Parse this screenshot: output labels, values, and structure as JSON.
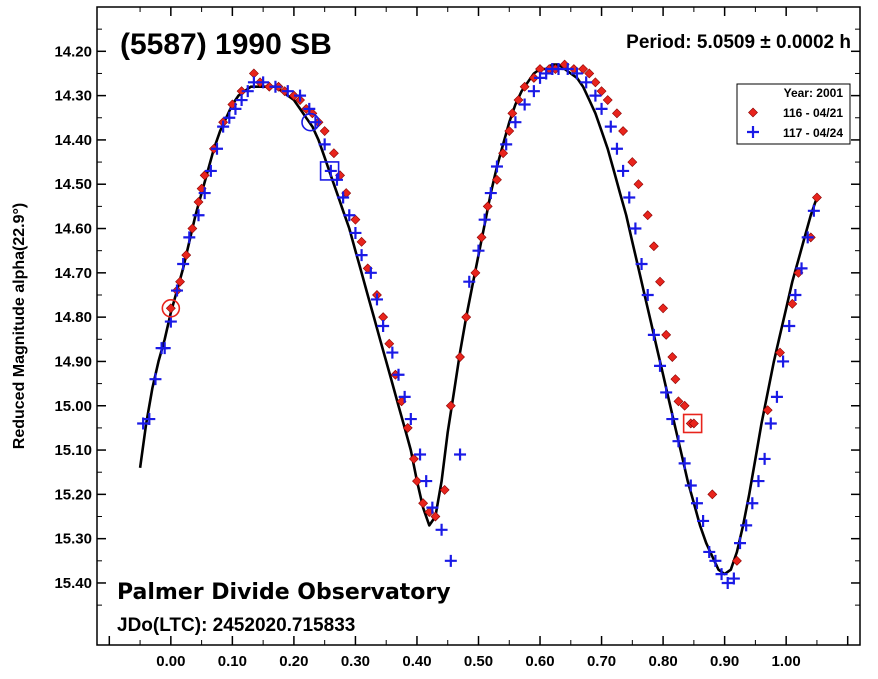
{
  "chart_data": {
    "type": "scatter",
    "title": "(5587) 1990 SB",
    "period_label": "Period: 5.0509 ± 0.0002 h",
    "ylabel": "Reduced Magnitude alpha(22.9°)",
    "xlabel": "",
    "footer": {
      "observatory": "Palmer Divide Observatory",
      "jdo": "JDo(LTC): 2452020.715833"
    },
    "xlim": [
      -0.12,
      1.12
    ],
    "ylim": [
      14.1,
      15.54
    ],
    "y_inverted": true,
    "x_ticks": [
      0.0,
      0.1,
      0.2,
      0.3,
      0.4,
      0.5,
      0.6,
      0.7,
      0.8,
      0.9,
      1.0
    ],
    "x_tick_labels": [
      "0.00",
      "0.10",
      "0.20",
      "0.30",
      "0.40",
      "0.50",
      "0.60",
      "0.70",
      "0.80",
      "0.90",
      "1.00"
    ],
    "y_ticks": [
      14.2,
      14.3,
      14.4,
      14.5,
      14.6,
      14.7,
      14.8,
      14.9,
      15.0,
      15.1,
      15.2,
      15.3,
      15.4
    ],
    "y_tick_labels": [
      "14.20",
      "14.30",
      "14.40",
      "14.50",
      "14.60",
      "14.70",
      "14.80",
      "14.90",
      "15.00",
      "15.10",
      "15.20",
      "15.30",
      "15.40"
    ],
    "grid": false,
    "legend": {
      "placement": "top-right",
      "title": "Year: 2001",
      "entries": [
        "116 - 04/21",
        "117 - 04/24"
      ]
    },
    "series": [
      {
        "name": "116 - 04/21",
        "marker": "diamond",
        "color": "#e8241c",
        "x": [
          0.0,
          0.01,
          0.015,
          0.025,
          0.035,
          0.045,
          0.05,
          0.055,
          0.07,
          0.085,
          0.1,
          0.115,
          0.135,
          0.145,
          0.16,
          0.175,
          0.185,
          0.2,
          0.21,
          0.22,
          0.23,
          0.24,
          0.25,
          0.265,
          0.275,
          0.285,
          0.3,
          0.31,
          0.32,
          0.335,
          0.345,
          0.355,
          0.365,
          0.375,
          0.385,
          0.395,
          0.4,
          0.41,
          0.42,
          0.43,
          0.445,
          0.455,
          0.47,
          0.48,
          0.495,
          0.505,
          0.515,
          0.53,
          0.54,
          0.55,
          0.555,
          0.565,
          0.575,
          0.59,
          0.6,
          0.615,
          0.625,
          0.64,
          0.655,
          0.67,
          0.68,
          0.69,
          0.7,
          0.71,
          0.725,
          0.735,
          0.75,
          0.76,
          0.775,
          0.785,
          0.795,
          0.8,
          0.805,
          0.815,
          0.82,
          0.825,
          0.835,
          0.845,
          0.85,
          0.88,
          0.92,
          0.97,
          0.99,
          1.01,
          1.02,
          1.04,
          1.05
        ],
        "y": [
          14.78,
          14.74,
          14.72,
          14.66,
          14.6,
          14.54,
          14.51,
          14.48,
          14.42,
          14.36,
          14.32,
          14.29,
          14.25,
          14.27,
          14.28,
          14.28,
          14.29,
          14.3,
          14.31,
          14.33,
          14.34,
          14.36,
          14.38,
          14.43,
          14.48,
          14.52,
          14.58,
          14.63,
          14.69,
          14.75,
          14.8,
          14.86,
          14.93,
          14.99,
          15.05,
          15.12,
          15.17,
          15.22,
          15.24,
          15.25,
          15.19,
          15.0,
          14.89,
          14.8,
          14.7,
          14.62,
          14.55,
          14.49,
          14.43,
          14.38,
          14.34,
          14.31,
          14.28,
          14.26,
          14.24,
          14.24,
          14.24,
          14.23,
          14.24,
          14.24,
          14.25,
          14.27,
          14.29,
          14.31,
          14.34,
          14.38,
          14.45,
          14.5,
          14.57,
          14.64,
          14.72,
          14.78,
          14.84,
          14.89,
          14.94,
          14.99,
          15.0,
          15.04,
          15.04,
          15.2,
          15.35,
          15.01,
          14.88,
          14.77,
          14.7,
          14.62,
          14.53
        ]
      },
      {
        "name": "117 - 04/24",
        "marker": "plus",
        "color": "#1a1ae6",
        "x": [
          -0.045,
          -0.035,
          -0.025,
          -0.015,
          -0.01,
          0.0,
          0.01,
          0.02,
          0.03,
          0.045,
          0.055,
          0.065,
          0.075,
          0.085,
          0.095,
          0.105,
          0.115,
          0.125,
          0.135,
          0.15,
          0.17,
          0.19,
          0.21,
          0.225,
          0.235,
          0.25,
          0.26,
          0.27,
          0.28,
          0.29,
          0.3,
          0.31,
          0.325,
          0.335,
          0.345,
          0.36,
          0.37,
          0.38,
          0.39,
          0.405,
          0.415,
          0.425,
          0.44,
          0.455,
          0.47,
          0.485,
          0.5,
          0.51,
          0.52,
          0.53,
          0.545,
          0.56,
          0.575,
          0.59,
          0.6,
          0.61,
          0.62,
          0.63,
          0.645,
          0.66,
          0.675,
          0.69,
          0.7,
          0.715,
          0.725,
          0.735,
          0.745,
          0.755,
          0.765,
          0.775,
          0.785,
          0.795,
          0.805,
          0.815,
          0.825,
          0.835,
          0.845,
          0.855,
          0.865,
          0.875,
          0.885,
          0.895,
          0.905,
          0.915,
          0.925,
          0.935,
          0.945,
          0.955,
          0.965,
          0.975,
          0.985,
          0.995,
          1.005,
          1.015,
          1.025,
          1.035,
          1.045
        ],
        "y": [
          15.04,
          15.03,
          14.94,
          14.87,
          14.87,
          14.81,
          14.74,
          14.68,
          14.62,
          14.57,
          14.52,
          14.47,
          14.42,
          14.37,
          14.35,
          14.33,
          14.31,
          14.29,
          14.27,
          14.27,
          14.28,
          14.29,
          14.3,
          14.33,
          14.36,
          14.41,
          14.47,
          14.49,
          14.53,
          14.57,
          14.61,
          14.66,
          14.7,
          14.76,
          14.82,
          14.88,
          14.93,
          14.98,
          15.03,
          15.11,
          15.17,
          15.23,
          15.28,
          15.35,
          15.11,
          14.72,
          14.65,
          14.58,
          14.52,
          14.46,
          14.41,
          14.36,
          14.32,
          14.29,
          14.26,
          14.25,
          14.24,
          14.24,
          14.24,
          14.25,
          14.27,
          14.3,
          14.33,
          14.37,
          14.42,
          14.47,
          14.53,
          14.6,
          14.68,
          14.75,
          14.84,
          14.91,
          14.97,
          15.03,
          15.08,
          15.13,
          15.18,
          15.22,
          15.26,
          15.33,
          15.35,
          15.38,
          15.4,
          15.39,
          15.31,
          15.27,
          15.22,
          15.17,
          15.12,
          15.04,
          14.98,
          14.9,
          14.82,
          14.75,
          14.69,
          14.62,
          14.56
        ]
      }
    ],
    "fit_curve": {
      "name": "",
      "x": [
        -0.05,
        -0.04,
        -0.03,
        -0.02,
        -0.01,
        0.0,
        0.01,
        0.02,
        0.03,
        0.04,
        0.05,
        0.06,
        0.07,
        0.08,
        0.09,
        0.1,
        0.11,
        0.12,
        0.13,
        0.14,
        0.15,
        0.16,
        0.17,
        0.18,
        0.19,
        0.2,
        0.21,
        0.22,
        0.23,
        0.24,
        0.25,
        0.26,
        0.27,
        0.28,
        0.29,
        0.3,
        0.31,
        0.32,
        0.33,
        0.34,
        0.35,
        0.36,
        0.37,
        0.38,
        0.39,
        0.4,
        0.41,
        0.42,
        0.43,
        0.44,
        0.45,
        0.46,
        0.47,
        0.48,
        0.49,
        0.5,
        0.51,
        0.52,
        0.53,
        0.54,
        0.55,
        0.56,
        0.57,
        0.58,
        0.59,
        0.6,
        0.61,
        0.62,
        0.63,
        0.64,
        0.65,
        0.66,
        0.67,
        0.68,
        0.69,
        0.7,
        0.71,
        0.72,
        0.73,
        0.74,
        0.75,
        0.76,
        0.77,
        0.78,
        0.79,
        0.8,
        0.81,
        0.82,
        0.83,
        0.84,
        0.85,
        0.86,
        0.87,
        0.88,
        0.89,
        0.9,
        0.91,
        0.92,
        0.93,
        0.94,
        0.95,
        0.96,
        0.97,
        0.98,
        0.99,
        1.0,
        1.01,
        1.02,
        1.03,
        1.04,
        1.05
      ],
      "y": [
        15.14,
        15.04,
        14.96,
        14.9,
        14.85,
        14.79,
        14.74,
        14.69,
        14.63,
        14.57,
        14.52,
        14.47,
        14.42,
        14.38,
        14.35,
        14.32,
        14.3,
        14.29,
        14.28,
        14.28,
        14.28,
        14.28,
        14.28,
        14.29,
        14.3,
        14.31,
        14.33,
        14.35,
        14.37,
        14.4,
        14.44,
        14.48,
        14.52,
        14.56,
        14.6,
        14.65,
        14.7,
        14.75,
        14.8,
        14.85,
        14.9,
        14.95,
        15.0,
        15.05,
        15.1,
        15.17,
        15.23,
        15.27,
        15.25,
        15.17,
        15.06,
        14.97,
        14.88,
        14.8,
        14.73,
        14.66,
        14.59,
        14.52,
        14.46,
        14.41,
        14.36,
        14.32,
        14.29,
        14.27,
        14.25,
        14.24,
        14.24,
        14.23,
        14.23,
        14.24,
        14.25,
        14.26,
        14.28,
        14.31,
        14.34,
        14.38,
        14.42,
        14.47,
        14.52,
        14.57,
        14.63,
        14.69,
        14.75,
        14.81,
        14.87,
        14.93,
        14.99,
        15.05,
        15.11,
        15.17,
        15.22,
        15.27,
        15.31,
        15.34,
        15.37,
        15.38,
        15.37,
        15.33,
        15.27,
        15.2,
        15.12,
        15.04,
        14.97,
        14.9,
        14.84,
        14.78,
        14.72,
        14.67,
        14.62,
        14.57,
        14.53
      ]
    },
    "annotations": [
      {
        "shape": "circle",
        "color": "#e8241c",
        "x": 0.0,
        "y": 14.78
      },
      {
        "shape": "circle",
        "color": "#1a1ae6",
        "x": 0.227,
        "y": 14.36
      },
      {
        "shape": "square",
        "color": "#1a1ae6",
        "x": 0.258,
        "y": 14.47
      },
      {
        "shape": "square",
        "color": "#e8241c",
        "x": 0.848,
        "y": 15.04
      }
    ]
  }
}
